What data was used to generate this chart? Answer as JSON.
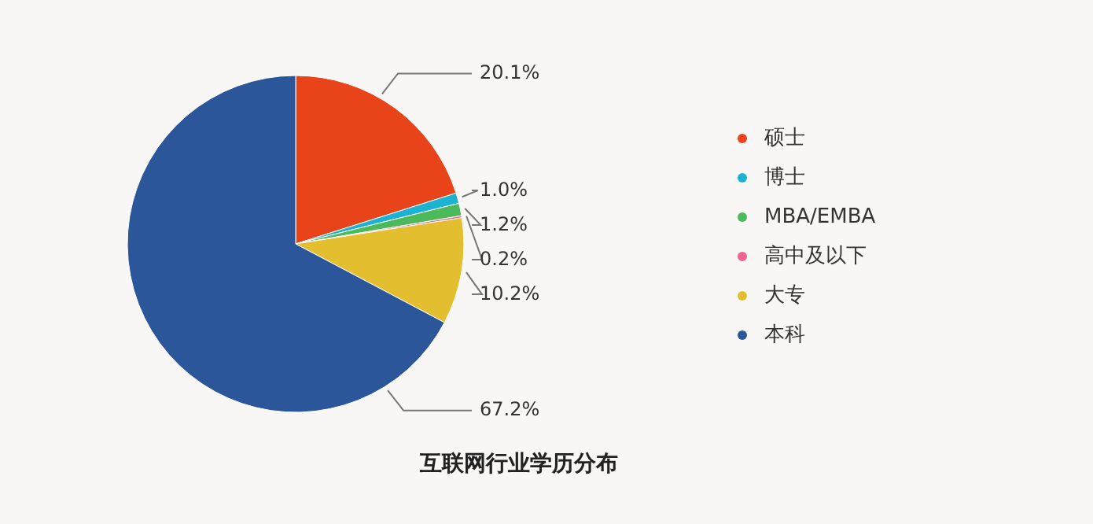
{
  "chart_data": {
    "type": "pie",
    "title": "互联网行业学历分布",
    "categories": [
      "硕士",
      "博士",
      "MBA/EMBA",
      "高中及以下",
      "大专",
      "本科"
    ],
    "values": [
      20.1,
      1.0,
      1.2,
      0.2,
      10.2,
      67.2
    ],
    "colors": [
      "#e9431a",
      "#1bb3d1",
      "#4cba5a",
      "#f06292",
      "#e3be2e",
      "#2b5699"
    ],
    "value_labels": [
      "20.1%",
      "1.0%",
      "1.2%",
      "0.2%",
      "10.2%",
      "67.2%"
    ],
    "legend": "right"
  }
}
